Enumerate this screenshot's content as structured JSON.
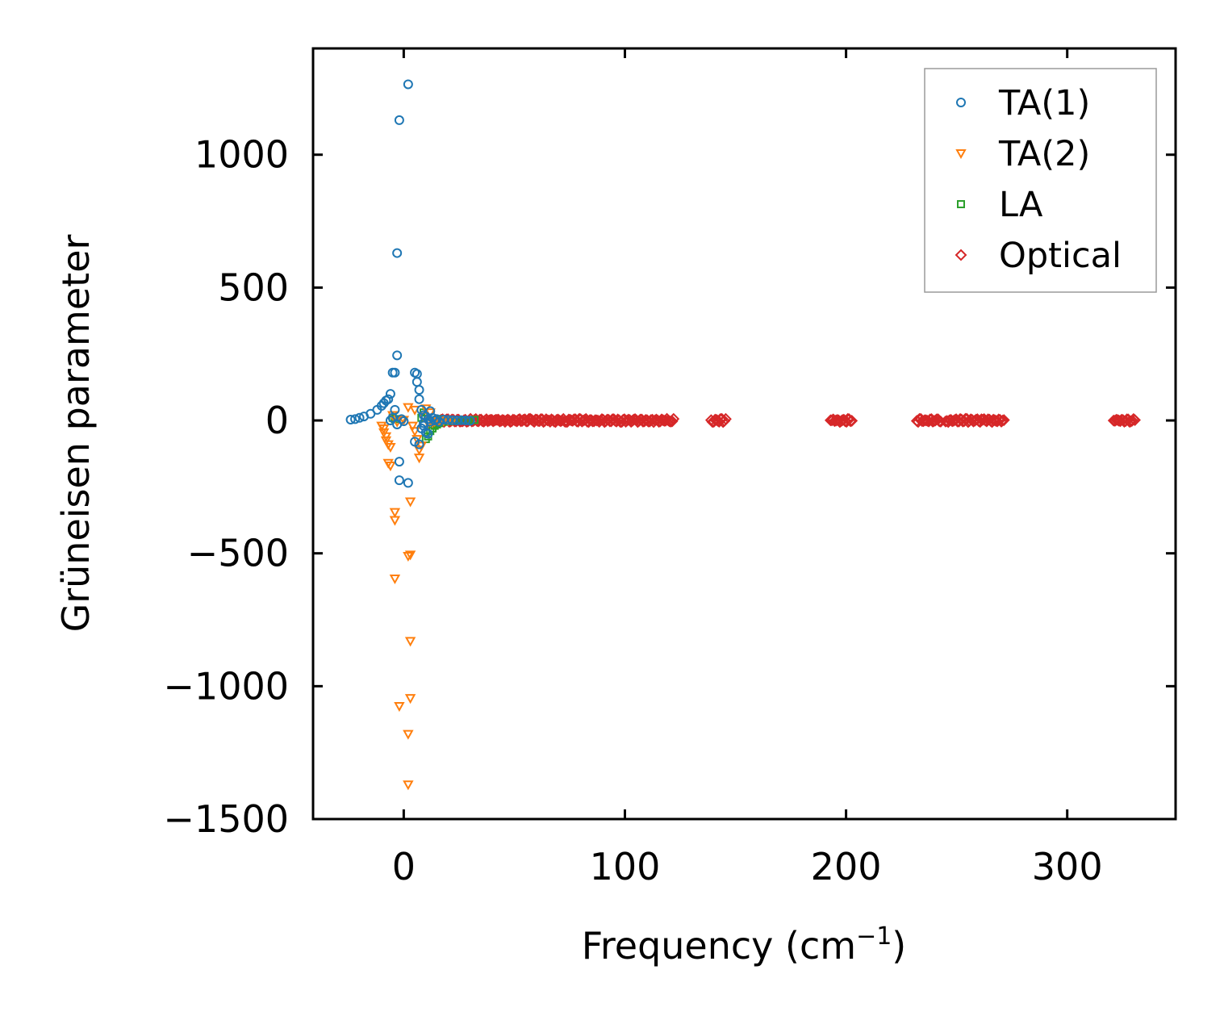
{
  "chart_data": {
    "type": "scatter",
    "title": "",
    "xlabel": "Frequency (cm",
    "xlabel_superscript": "−1",
    "xlabel_suffix": ")",
    "ylabel": "Grüneisen parameter",
    "xlim": [
      -41,
      349
    ],
    "ylim": [
      -1500,
      1400
    ],
    "xticks": [
      0,
      100,
      200,
      300
    ],
    "yticks": [
      -1500,
      -1000,
      -500,
      0,
      500,
      1000
    ],
    "xtick_labels": [
      "0",
      "100",
      "200",
      "300"
    ],
    "ytick_labels": [
      "−1500",
      "−1000",
      "−500",
      "0",
      "500",
      "1000"
    ],
    "grid": false,
    "legend_position": "top-right",
    "series": [
      {
        "name": "TA(1)",
        "marker": "circle",
        "color": "#1f77b4",
        "points": [
          [
            2,
            1265
          ],
          [
            -2,
            1130
          ],
          [
            -3,
            630
          ],
          [
            -3,
            245
          ],
          [
            -4,
            180
          ],
          [
            -5,
            180
          ],
          [
            5,
            180
          ],
          [
            6,
            175
          ],
          [
            6,
            145
          ],
          [
            7,
            115
          ],
          [
            7,
            80
          ],
          [
            -6,
            100
          ],
          [
            -7,
            80
          ],
          [
            -8,
            75
          ],
          [
            -9,
            65
          ],
          [
            -10,
            55
          ],
          [
            -12,
            40
          ],
          [
            -15,
            25
          ],
          [
            -18,
            15
          ],
          [
            -20,
            10
          ],
          [
            -22,
            5
          ],
          [
            -24,
            3
          ],
          [
            -4,
            40
          ],
          [
            -5,
            10
          ],
          [
            -6,
            0
          ],
          [
            -3,
            -15
          ],
          [
            -2,
            -155
          ],
          [
            -2,
            -225
          ],
          [
            2,
            -235
          ],
          [
            5,
            -80
          ],
          [
            7,
            -90
          ],
          [
            8,
            -30
          ],
          [
            9,
            -10
          ],
          [
            9,
            20
          ],
          [
            10,
            15
          ],
          [
            11,
            5
          ],
          [
            12,
            -5
          ],
          [
            13,
            10
          ],
          [
            14,
            0
          ],
          [
            15,
            5
          ],
          [
            16,
            -5
          ],
          [
            18,
            3
          ],
          [
            20,
            2
          ],
          [
            22,
            1
          ],
          [
            24,
            0
          ],
          [
            26,
            1
          ],
          [
            28,
            0
          ],
          [
            30,
            -1
          ],
          [
            8,
            40
          ],
          [
            10,
            -45
          ],
          [
            11,
            -50
          ],
          [
            12,
            35
          ],
          [
            9,
            -20
          ],
          [
            -1,
            5
          ],
          [
            0,
            -3
          ]
        ]
      },
      {
        "name": "TA(2)",
        "marker": "triangle-down",
        "color": "#ff7f0e",
        "points": [
          [
            2,
            -1370
          ],
          [
            2,
            -1180
          ],
          [
            -2,
            -1075
          ],
          [
            3,
            -1045
          ],
          [
            3,
            -830
          ],
          [
            -4,
            -595
          ],
          [
            2,
            -510
          ],
          [
            3,
            -505
          ],
          [
            -4,
            -375
          ],
          [
            -4,
            -345
          ],
          [
            3,
            -305
          ],
          [
            -6,
            -170
          ],
          [
            -7,
            -160
          ],
          [
            -6,
            -100
          ],
          [
            -7,
            -90
          ],
          [
            -8,
            -75
          ],
          [
            -8,
            -60
          ],
          [
            -9,
            -45
          ],
          [
            -9,
            -30
          ],
          [
            -10,
            -20
          ],
          [
            7,
            -140
          ],
          [
            7,
            -110
          ],
          [
            8,
            -95
          ],
          [
            6,
            -70
          ],
          [
            5,
            -40
          ],
          [
            4,
            -20
          ],
          [
            2,
            50
          ],
          [
            5,
            40
          ],
          [
            10,
            45
          ],
          [
            12,
            30
          ],
          [
            9,
            15
          ],
          [
            -5,
            20
          ],
          [
            -3,
            -5
          ],
          [
            -1,
            0
          ],
          [
            0,
            2
          ],
          [
            11,
            -10
          ],
          [
            13,
            -8
          ],
          [
            14,
            -3
          ],
          [
            16,
            -2
          ],
          [
            18,
            -1
          ],
          [
            20,
            0
          ],
          [
            22,
            -1
          ]
        ]
      },
      {
        "name": "LA",
        "marker": "square",
        "color": "#2ca02c",
        "points": [
          [
            10,
            -70
          ],
          [
            11,
            -60
          ],
          [
            12,
            -40
          ],
          [
            13,
            -30
          ],
          [
            14,
            -20
          ],
          [
            15,
            -15
          ],
          [
            16,
            -10
          ],
          [
            18,
            -5
          ],
          [
            20,
            -3
          ],
          [
            22,
            -2
          ],
          [
            24,
            -1
          ],
          [
            26,
            0
          ],
          [
            28,
            0
          ],
          [
            30,
            1
          ],
          [
            32,
            2
          ],
          [
            -5,
            10
          ],
          [
            -4,
            5
          ],
          [
            9,
            30
          ],
          [
            8,
            10
          ],
          [
            17,
            5
          ],
          [
            19,
            3
          ],
          [
            21,
            2
          ],
          [
            23,
            1
          ],
          [
            25,
            0
          ],
          [
            27,
            1
          ],
          [
            29,
            0
          ]
        ]
      },
      {
        "name": "Optical",
        "marker": "diamond",
        "color": "#d62728",
        "ranges": [
          [
            14,
            122
          ],
          [
            139,
            146
          ],
          [
            193,
            203
          ],
          [
            232,
            243
          ],
          [
            245,
            272
          ],
          [
            321,
            331
          ]
        ]
      }
    ]
  }
}
